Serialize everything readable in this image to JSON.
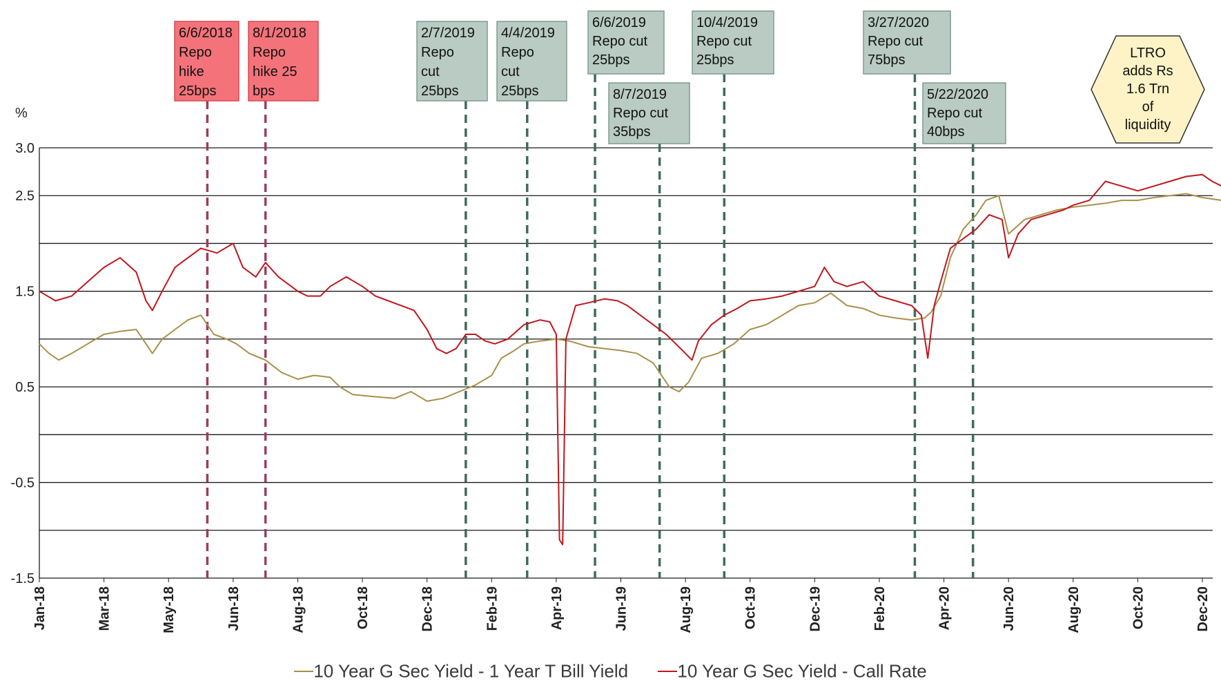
{
  "chart_data": {
    "type": "line",
    "unit_label": "%",
    "ylim": [
      -1.5,
      3.0
    ],
    "yticks": [
      "3.0",
      "2.5",
      "",
      "1.5",
      "",
      "0.5",
      "",
      "-0.5",
      "",
      "-1.5"
    ],
    "ytick_values": [
      3.0,
      2.5,
      2.0,
      1.5,
      1.0,
      0.5,
      0.0,
      -0.5,
      -1.0,
      -1.5
    ],
    "grid": true,
    "xrange": [
      0,
      36
    ],
    "x_ticks": [
      {
        "label": "Jan-18",
        "x": 0
      },
      {
        "label": "Mar-18",
        "x": 2
      },
      {
        "label": "May-18",
        "x": 4
      },
      {
        "label": "Jun-18",
        "x": 6
      },
      {
        "label": "Aug-18",
        "x": 8
      },
      {
        "label": "Oct-18",
        "x": 10
      },
      {
        "label": "Dec-18",
        "x": 12
      },
      {
        "label": "Feb-19",
        "x": 14
      },
      {
        "label": "Apr-19",
        "x": 16
      },
      {
        "label": "Jun-19",
        "x": 18
      },
      {
        "label": "Aug-19",
        "x": 20
      },
      {
        "label": "Oct-19",
        "x": 22
      },
      {
        "label": "Dec-19",
        "x": 24
      },
      {
        "label": "Feb-20",
        "x": 26
      },
      {
        "label": "Apr-20",
        "x": 28
      },
      {
        "label": "Jun-20",
        "x": 30
      },
      {
        "label": "Aug-20",
        "x": 32
      },
      {
        "label": "Oct-20",
        "x": 34
      },
      {
        "label": "Dec-20",
        "x": 36
      }
    ],
    "series": [
      {
        "name": "10 Year G Sec Yield  - 1 Year T Bill Yield",
        "color": "#a8904a",
        "points": [
          [
            0,
            0.95
          ],
          [
            0.3,
            0.85
          ],
          [
            0.6,
            0.78
          ],
          [
            1,
            0.85
          ],
          [
            1.5,
            0.95
          ],
          [
            2,
            1.05
          ],
          [
            2.5,
            1.08
          ],
          [
            3,
            1.1
          ],
          [
            3.3,
            0.95
          ],
          [
            3.5,
            0.85
          ],
          [
            3.8,
            1.0
          ],
          [
            4.2,
            1.1
          ],
          [
            4.6,
            1.2
          ],
          [
            5,
            1.25
          ],
          [
            5.4,
            1.05
          ],
          [
            5.8,
            1.0
          ],
          [
            6.1,
            0.95
          ],
          [
            6.5,
            0.85
          ],
          [
            7,
            0.78
          ],
          [
            7.5,
            0.65
          ],
          [
            8,
            0.58
          ],
          [
            8.5,
            0.62
          ],
          [
            9,
            0.6
          ],
          [
            9.3,
            0.5
          ],
          [
            9.7,
            0.42
          ],
          [
            10.3,
            0.4
          ],
          [
            11,
            0.38
          ],
          [
            11.5,
            0.45
          ],
          [
            12,
            0.35
          ],
          [
            12.5,
            0.38
          ],
          [
            13,
            0.45
          ],
          [
            13.5,
            0.52
          ],
          [
            14,
            0.62
          ],
          [
            14.3,
            0.8
          ],
          [
            14.7,
            0.88
          ],
          [
            15,
            0.95
          ],
          [
            15.5,
            0.98
          ],
          [
            16,
            1.0
          ],
          [
            16.4,
            0.98
          ],
          [
            16.7,
            0.95
          ],
          [
            17,
            0.92
          ],
          [
            17.5,
            0.9
          ],
          [
            18,
            0.88
          ],
          [
            18.5,
            0.85
          ],
          [
            19,
            0.75
          ],
          [
            19.5,
            0.5
          ],
          [
            19.8,
            0.45
          ],
          [
            20.1,
            0.55
          ],
          [
            20.5,
            0.8
          ],
          [
            21,
            0.85
          ],
          [
            21.5,
            0.95
          ],
          [
            22,
            1.1
          ],
          [
            22.5,
            1.15
          ],
          [
            23,
            1.25
          ],
          [
            23.5,
            1.35
          ],
          [
            24,
            1.38
          ],
          [
            24.5,
            1.48
          ],
          [
            25,
            1.35
          ],
          [
            25.5,
            1.32
          ],
          [
            26,
            1.25
          ],
          [
            26.5,
            1.22
          ],
          [
            27,
            1.2
          ],
          [
            27.4,
            1.22
          ],
          [
            27.6,
            1.28
          ],
          [
            27.9,
            1.45
          ],
          [
            28.2,
            1.85
          ],
          [
            28.6,
            2.15
          ],
          [
            29,
            2.3
          ],
          [
            29.3,
            2.45
          ],
          [
            29.7,
            2.5
          ],
          [
            30,
            2.1
          ],
          [
            30.5,
            2.25
          ],
          [
            31,
            2.3
          ],
          [
            31.5,
            2.35
          ],
          [
            32,
            2.38
          ],
          [
            32.5,
            2.4
          ],
          [
            33,
            2.42
          ],
          [
            33.5,
            2.45
          ],
          [
            34,
            2.45
          ],
          [
            34.5,
            2.48
          ],
          [
            35,
            2.5
          ],
          [
            35.5,
            2.52
          ],
          [
            36,
            2.48
          ],
          [
            36.6,
            2.45
          ]
        ]
      },
      {
        "name": "10 Year G Sec Yield - Call Rate",
        "color": "#c0161c",
        "points": [
          [
            0,
            1.5
          ],
          [
            0.5,
            1.4
          ],
          [
            1,
            1.45
          ],
          [
            1.5,
            1.6
          ],
          [
            2,
            1.75
          ],
          [
            2.5,
            1.85
          ],
          [
            3,
            1.7
          ],
          [
            3.3,
            1.4
          ],
          [
            3.5,
            1.3
          ],
          [
            3.8,
            1.5
          ],
          [
            4.2,
            1.75
          ],
          [
            4.6,
            1.85
          ],
          [
            5,
            1.95
          ],
          [
            5.5,
            1.9
          ],
          [
            6,
            2.0
          ],
          [
            6.3,
            1.75
          ],
          [
            6.7,
            1.65
          ],
          [
            7,
            1.8
          ],
          [
            7.4,
            1.65
          ],
          [
            7.8,
            1.55
          ],
          [
            8,
            1.5
          ],
          [
            8.3,
            1.45
          ],
          [
            8.7,
            1.45
          ],
          [
            9,
            1.55
          ],
          [
            9.5,
            1.65
          ],
          [
            10,
            1.55
          ],
          [
            10.4,
            1.45
          ],
          [
            10.8,
            1.4
          ],
          [
            11.2,
            1.35
          ],
          [
            11.6,
            1.3
          ],
          [
            12,
            1.1
          ],
          [
            12.3,
            0.9
          ],
          [
            12.6,
            0.85
          ],
          [
            12.9,
            0.9
          ],
          [
            13.2,
            1.05
          ],
          [
            13.5,
            1.05
          ],
          [
            13.8,
            0.98
          ],
          [
            14.1,
            0.95
          ],
          [
            14.5,
            1.0
          ],
          [
            15,
            1.15
          ],
          [
            15.5,
            1.2
          ],
          [
            15.8,
            1.18
          ],
          [
            16,
            1.05
          ],
          [
            16.1,
            -1.1
          ],
          [
            16.2,
            -1.15
          ],
          [
            16.3,
            1.0
          ],
          [
            16.6,
            1.35
          ],
          [
            17,
            1.38
          ],
          [
            17.5,
            1.42
          ],
          [
            17.9,
            1.4
          ],
          [
            18.2,
            1.35
          ],
          [
            18.6,
            1.25
          ],
          [
            19,
            1.15
          ],
          [
            19.4,
            1.05
          ],
          [
            19.7,
            0.95
          ],
          [
            20,
            0.85
          ],
          [
            20.2,
            0.78
          ],
          [
            20.4,
            0.98
          ],
          [
            20.8,
            1.15
          ],
          [
            21.2,
            1.25
          ],
          [
            21.6,
            1.32
          ],
          [
            22,
            1.4
          ],
          [
            22.5,
            1.42
          ],
          [
            23,
            1.45
          ],
          [
            23.5,
            1.5
          ],
          [
            24,
            1.55
          ],
          [
            24.3,
            1.75
          ],
          [
            24.6,
            1.6
          ],
          [
            25,
            1.55
          ],
          [
            25.5,
            1.6
          ],
          [
            26,
            1.45
          ],
          [
            26.5,
            1.4
          ],
          [
            27,
            1.35
          ],
          [
            27.3,
            1.25
          ],
          [
            27.5,
            0.8
          ],
          [
            27.7,
            1.35
          ],
          [
            27.9,
            1.6
          ],
          [
            28.2,
            1.95
          ],
          [
            28.6,
            2.05
          ],
          [
            29,
            2.15
          ],
          [
            29.4,
            2.3
          ],
          [
            29.8,
            2.25
          ],
          [
            30,
            1.85
          ],
          [
            30.3,
            2.1
          ],
          [
            30.7,
            2.25
          ],
          [
            31.2,
            2.3
          ],
          [
            31.7,
            2.35
          ],
          [
            32,
            2.4
          ],
          [
            32.5,
            2.45
          ],
          [
            33,
            2.65
          ],
          [
            33.5,
            2.6
          ],
          [
            34,
            2.55
          ],
          [
            34.5,
            2.6
          ],
          [
            35,
            2.65
          ],
          [
            35.5,
            2.7
          ],
          [
            36,
            2.72
          ],
          [
            36.3,
            2.65
          ],
          [
            36.6,
            2.6
          ]
        ]
      }
    ],
    "events": [
      {
        "x": 5.2,
        "color": "#9b3b64",
        "box": "red",
        "lines": [
          "6/6/2018",
          "Repo",
          "hike",
          "25bps"
        ]
      },
      {
        "x": 7.0,
        "color": "#9b3b64",
        "box": "red",
        "lines": [
          "8/1/2018",
          "Repo",
          "hike 25",
          "bps"
        ]
      },
      {
        "x": 13.2,
        "color": "#3f6b59",
        "box": "teal",
        "lines": [
          "2/7/2019",
          "Repo",
          "cut",
          "25bps"
        ]
      },
      {
        "x": 15.1,
        "color": "#3f6b59",
        "box": "teal",
        "lines": [
          "4/4/2019",
          "Repo",
          "cut",
          "25bps"
        ]
      },
      {
        "x": 17.2,
        "color": "#3f6b59",
        "box": "teal",
        "lines": [
          "6/6/2019",
          "Repo cut",
          "25bps"
        ]
      },
      {
        "x": 19.2,
        "color": "#3f6b59",
        "box": "teal",
        "lines": [
          "8/7/2019",
          "Repo cut",
          "35bps"
        ]
      },
      {
        "x": 21.2,
        "color": "#3f6b59",
        "box": "teal",
        "lines": [
          "10/4/2019",
          "Repo cut",
          "25bps"
        ]
      },
      {
        "x": 27.1,
        "color": "#3f6b59",
        "box": "teal",
        "lines": [
          "3/27/2020",
          "Repo cut",
          "75bps"
        ]
      },
      {
        "x": 28.9,
        "color": "#3f6b59",
        "box": "teal",
        "lines": [
          "5/22/2020",
          "Repo cut",
          "40bps"
        ]
      }
    ],
    "annotation": {
      "lines": [
        "LTRO",
        "adds Rs",
        "1.6 Trn",
        "of",
        "liquidity"
      ],
      "color": "#fdf3c6"
    }
  }
}
